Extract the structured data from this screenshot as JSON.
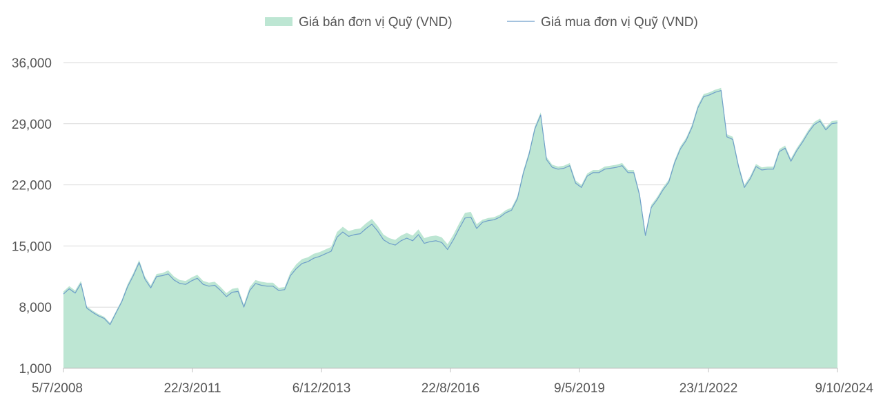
{
  "chart_data": {
    "type": "area",
    "title": "",
    "xlabel": "",
    "ylabel": "",
    "ylim": [
      1000,
      36000
    ],
    "y_ticks": [
      "1,000",
      "8,000",
      "15,000",
      "22,000",
      "29,000",
      "36,000"
    ],
    "y_tick_values": [
      1000,
      8000,
      15000,
      22000,
      29000,
      36000
    ],
    "x_ticks": [
      "5/7/2008",
      "22/3/2011",
      "6/12/2013",
      "22/8/2016",
      "9/5/2019",
      "23/1/2022",
      "9/10/2024"
    ],
    "x_tick_values": [
      "2008-07-05",
      "2011-03-22",
      "2013-12-06",
      "2016-08-22",
      "2019-05-09",
      "2022-01-23",
      "2024-10-09"
    ],
    "xlim": [
      "2008-07-05",
      "2024-10-09"
    ],
    "grid": true,
    "legend_position": "top-center",
    "series": [
      {
        "name": "Giá bán đơn vị Quỹ (VND)",
        "style": "area",
        "color": "#bde6d3",
        "values": [
          9800,
          10400,
          9900,
          11000,
          8100,
          7600,
          7200,
          6900,
          6200,
          7500,
          8800,
          10600,
          11900,
          13400,
          11500,
          10500,
          11800,
          11900,
          12200,
          11500,
          11100,
          11000,
          11400,
          11700,
          11000,
          10800,
          10900,
          10300,
          9600,
          10100,
          10200,
          8300,
          10300,
          11100,
          10900,
          10800,
          10800,
          10200,
          10300,
          12000,
          12900,
          13500,
          13700,
          14100,
          14300,
          14600,
          14900,
          16600,
          17200,
          16700,
          16900,
          17000,
          17600,
          18100,
          17300,
          16300,
          15900,
          15700,
          16200,
          16500,
          16200,
          16900,
          15900,
          16100,
          16200,
          16000,
          15200,
          16300,
          17600,
          18800,
          18900,
          17500,
          18000,
          18200,
          18300,
          18600,
          19100,
          19400,
          20700,
          23600,
          25800,
          28700,
          30300,
          25200,
          24300,
          24100,
          24200,
          24500,
          22500,
          22000,
          23300,
          23700,
          23700,
          24100,
          24200,
          24300,
          24500,
          23700,
          23700,
          21100,
          16500,
          19700,
          20600,
          21700,
          22600,
          24800,
          26400,
          27400,
          28900,
          31100,
          32400,
          32600,
          32900,
          33100,
          27800,
          27500,
          24400,
          22000,
          23000,
          24400,
          24000,
          24100,
          24100,
          26100,
          26500,
          25000,
          26200,
          27200,
          28300,
          29200,
          29600,
          28600,
          29300,
          29400
        ]
      },
      {
        "name": "Giá mua đơn vị Quỹ (VND)",
        "style": "line",
        "color": "#6e9ec9",
        "values": [
          9500,
          10100,
          9600,
          10700,
          7900,
          7400,
          7000,
          6700,
          6000,
          7300,
          8600,
          10300,
          11600,
          13100,
          11200,
          10200,
          11500,
          11600,
          11800,
          11100,
          10700,
          10600,
          11000,
          11300,
          10600,
          10400,
          10500,
          9900,
          9200,
          9700,
          9800,
          8000,
          9900,
          10700,
          10500,
          10400,
          10400,
          9900,
          10000,
          11600,
          12400,
          13000,
          13200,
          13600,
          13800,
          14100,
          14400,
          16000,
          16600,
          16100,
          16300,
          16400,
          17000,
          17500,
          16700,
          15700,
          15300,
          15100,
          15600,
          15900,
          15600,
          16300,
          15300,
          15500,
          15600,
          15400,
          14600,
          15700,
          17000,
          18200,
          18300,
          17000,
          17700,
          17900,
          18000,
          18300,
          18800,
          19100,
          20400,
          23300,
          25500,
          28400,
          30000,
          24900,
          24000,
          23800,
          23900,
          24200,
          22200,
          21700,
          23000,
          23400,
          23400,
          23800,
          23900,
          24000,
          24200,
          23400,
          23400,
          20800,
          16200,
          19400,
          20300,
          21400,
          22300,
          24500,
          26100,
          27100,
          28600,
          30800,
          32100,
          32300,
          32600,
          32800,
          27500,
          27200,
          24100,
          21700,
          22700,
          24100,
          23700,
          23800,
          23800,
          25800,
          26200,
          24700,
          25900,
          26900,
          28000,
          28900,
          29300,
          28300,
          29000,
          29100
        ]
      }
    ]
  }
}
